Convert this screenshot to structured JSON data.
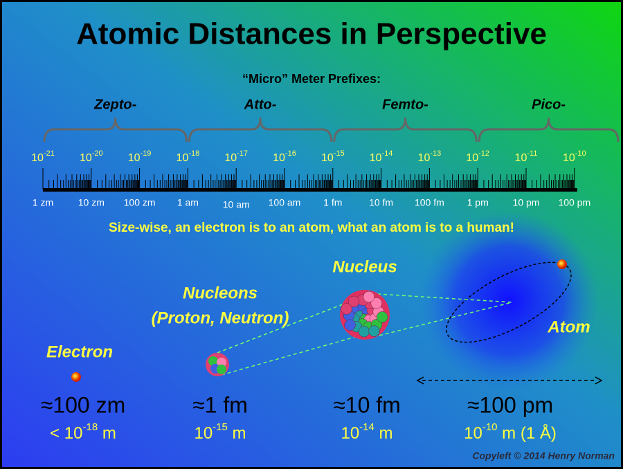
{
  "title": "Atomic Distances in Perspective",
  "prefixes": {
    "heading": "“Micro” Meter Prefixes:",
    "names": [
      "Zepto-",
      "Atto-",
      "Femto-",
      "Pico-"
    ]
  },
  "scale": {
    "powers": [
      {
        "base": "10",
        "exp": "-21"
      },
      {
        "base": "10",
        "exp": "-20"
      },
      {
        "base": "10",
        "exp": "-19"
      },
      {
        "base": "10",
        "exp": "-18"
      },
      {
        "base": "10",
        "exp": "-17"
      },
      {
        "base": "10",
        "exp": "-16"
      },
      {
        "base": "10",
        "exp": "-15"
      },
      {
        "base": "10",
        "exp": "-14"
      },
      {
        "base": "10",
        "exp": "-13"
      },
      {
        "base": "10",
        "exp": "-12"
      },
      {
        "base": "10",
        "exp": "-11"
      },
      {
        "base": "10",
        "exp": "-10"
      }
    ],
    "units": [
      "1 zm",
      "10 zm",
      "100 zm",
      "1 am",
      "10 am",
      "100 am",
      "1 fm",
      "10 fm",
      "100 fm",
      "1 pm",
      "10 pm",
      "100 pm"
    ]
  },
  "tagline": "Size-wise, an electron is to an atom, what an atom is to a human!",
  "objects": [
    {
      "label": [
        "Electron"
      ],
      "approx": "≈100 zm",
      "exact": {
        "pre": "< 10",
        "exp": "-18",
        "post": " m"
      }
    },
    {
      "label": [
        "Nucleons",
        "(Proton, Neutron)"
      ],
      "approx": "≈1 fm",
      "exact": {
        "pre": "10",
        "exp": "-15",
        "post": " m"
      }
    },
    {
      "label": [
        "Nucleus"
      ],
      "approx": "≈10 fm",
      "exact": {
        "pre": "10",
        "exp": "-14",
        "post": " m"
      }
    },
    {
      "label": [
        "Atom"
      ],
      "approx": "≈100 pm",
      "exact": {
        "pre": "10",
        "exp": "-10",
        "post": " m (1 Å)"
      }
    }
  ],
  "credit": "Copyleft © 2014 Henry Norman"
}
